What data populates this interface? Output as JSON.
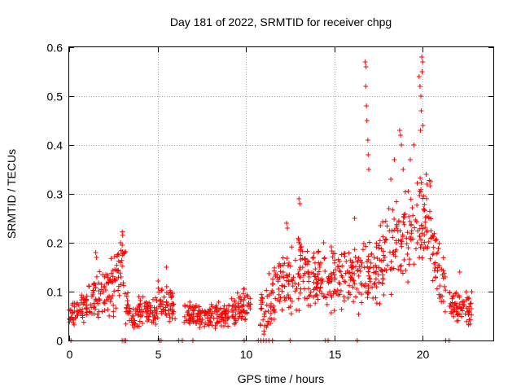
{
  "chart_data": {
    "type": "scatter",
    "title": "Day 181 of 2022, SRMTID for receiver chpg",
    "xlabel": "GPS time / hours",
    "ylabel": "SRMTID / TECUs",
    "xlim": [
      0,
      24
    ],
    "ylim": [
      0,
      0.6
    ],
    "xticks": [
      0,
      5,
      10,
      15,
      20
    ],
    "yticks": [
      0,
      0.1,
      0.2,
      0.3,
      0.4,
      0.5,
      0.6
    ],
    "grid": true,
    "marker": "+",
    "series_color": "#ff0000",
    "segments": [
      {
        "x0": 0.0,
        "x1": 0.6,
        "y0": 0.045,
        "y1": 0.06,
        "noise": 0.018
      },
      {
        "x0": 0.6,
        "x1": 1.4,
        "y0": 0.06,
        "y1": 0.08,
        "noise": 0.025
      },
      {
        "x0": 1.4,
        "x1": 2.5,
        "y0": 0.08,
        "y1": 0.11,
        "noise": 0.04
      },
      {
        "x0": 2.5,
        "x1": 3.2,
        "y0": 0.11,
        "y1": 0.16,
        "noise": 0.05
      },
      {
        "x0": 3.2,
        "x1": 4.0,
        "y0": 0.06,
        "y1": 0.05,
        "noise": 0.025
      },
      {
        "x0": 4.0,
        "x1": 5.0,
        "y0": 0.055,
        "y1": 0.065,
        "noise": 0.022
      },
      {
        "x0": 5.0,
        "x1": 6.0,
        "y0": 0.08,
        "y1": 0.07,
        "noise": 0.03
      },
      {
        "x0": 6.5,
        "x1": 8.0,
        "y0": 0.05,
        "y1": 0.045,
        "noise": 0.02
      },
      {
        "x0": 8.0,
        "x1": 9.5,
        "y0": 0.045,
        "y1": 0.06,
        "noise": 0.02
      },
      {
        "x0": 9.5,
        "x1": 10.3,
        "y0": 0.065,
        "y1": 0.07,
        "noise": 0.025
      },
      {
        "x0": 10.8,
        "x1": 12.0,
        "y0": 0.05,
        "y1": 0.11,
        "noise": 0.045
      },
      {
        "x0": 12.0,
        "x1": 13.5,
        "y0": 0.12,
        "y1": 0.14,
        "noise": 0.055
      },
      {
        "x0": 13.5,
        "x1": 14.8,
        "y0": 0.12,
        "y1": 0.13,
        "noise": 0.045
      },
      {
        "x0": 14.8,
        "x1": 16.3,
        "y0": 0.12,
        "y1": 0.12,
        "noise": 0.05
      },
      {
        "x0": 16.3,
        "x1": 17.5,
        "y0": 0.12,
        "y1": 0.14,
        "noise": 0.05
      },
      {
        "x0": 17.5,
        "x1": 19.0,
        "y0": 0.15,
        "y1": 0.21,
        "noise": 0.06
      },
      {
        "x0": 19.0,
        "x1": 20.5,
        "y0": 0.21,
        "y1": 0.24,
        "noise": 0.07
      },
      {
        "x0": 20.5,
        "x1": 21.3,
        "y0": 0.18,
        "y1": 0.11,
        "noise": 0.05
      },
      {
        "x0": 21.5,
        "x1": 22.8,
        "y0": 0.07,
        "y1": 0.06,
        "noise": 0.025
      }
    ],
    "spikes": [
      {
        "x": 1.5,
        "y": 0.18
      },
      {
        "x": 1.55,
        "y": 0.17
      },
      {
        "x": 2.9,
        "y": 0.2
      },
      {
        "x": 3.0,
        "y": 0.195
      },
      {
        "x": 5.5,
        "y": 0.15
      },
      {
        "x": 12.3,
        "y": 0.24
      },
      {
        "x": 12.35,
        "y": 0.23
      },
      {
        "x": 13.0,
        "y": 0.29
      },
      {
        "x": 13.05,
        "y": 0.28
      },
      {
        "x": 14.4,
        "y": 0.2
      },
      {
        "x": 16.15,
        "y": 0.25
      },
      {
        "x": 16.75,
        "y": 0.57
      },
      {
        "x": 16.8,
        "y": 0.56
      },
      {
        "x": 16.78,
        "y": 0.52
      },
      {
        "x": 16.82,
        "y": 0.48
      },
      {
        "x": 16.85,
        "y": 0.45
      },
      {
        "x": 16.9,
        "y": 0.41
      },
      {
        "x": 16.92,
        "y": 0.38
      },
      {
        "x": 16.95,
        "y": 0.35
      },
      {
        "x": 18.4,
        "y": 0.37
      },
      {
        "x": 18.7,
        "y": 0.43
      },
      {
        "x": 18.75,
        "y": 0.42
      },
      {
        "x": 18.8,
        "y": 0.4
      },
      {
        "x": 19.3,
        "y": 0.37
      },
      {
        "x": 19.5,
        "y": 0.4
      },
      {
        "x": 19.8,
        "y": 0.54
      },
      {
        "x": 19.85,
        "y": 0.52
      },
      {
        "x": 19.9,
        "y": 0.5
      },
      {
        "x": 19.95,
        "y": 0.58
      },
      {
        "x": 20.0,
        "y": 0.57
      },
      {
        "x": 19.97,
        "y": 0.55
      },
      {
        "x": 19.92,
        "y": 0.47
      },
      {
        "x": 20.02,
        "y": 0.44
      },
      {
        "x": 19.88,
        "y": 0.43
      },
      {
        "x": 20.2,
        "y": 0.34
      },
      {
        "x": 20.25,
        "y": 0.32
      },
      {
        "x": 22.1,
        "y": 0.14
      },
      {
        "x": 18.2,
        "y": 0.33
      },
      {
        "x": 18.9,
        "y": 0.35
      }
    ],
    "zero_points": [
      0.1,
      3.0,
      3.1,
      3.2,
      5.1,
      5.2,
      6.2,
      6.4,
      7.0,
      9.9,
      10.7,
      10.85,
      11.0,
      11.15,
      11.3,
      11.5,
      12.5,
      14.5,
      14.65,
      16.3,
      21.3,
      21.5
    ]
  }
}
